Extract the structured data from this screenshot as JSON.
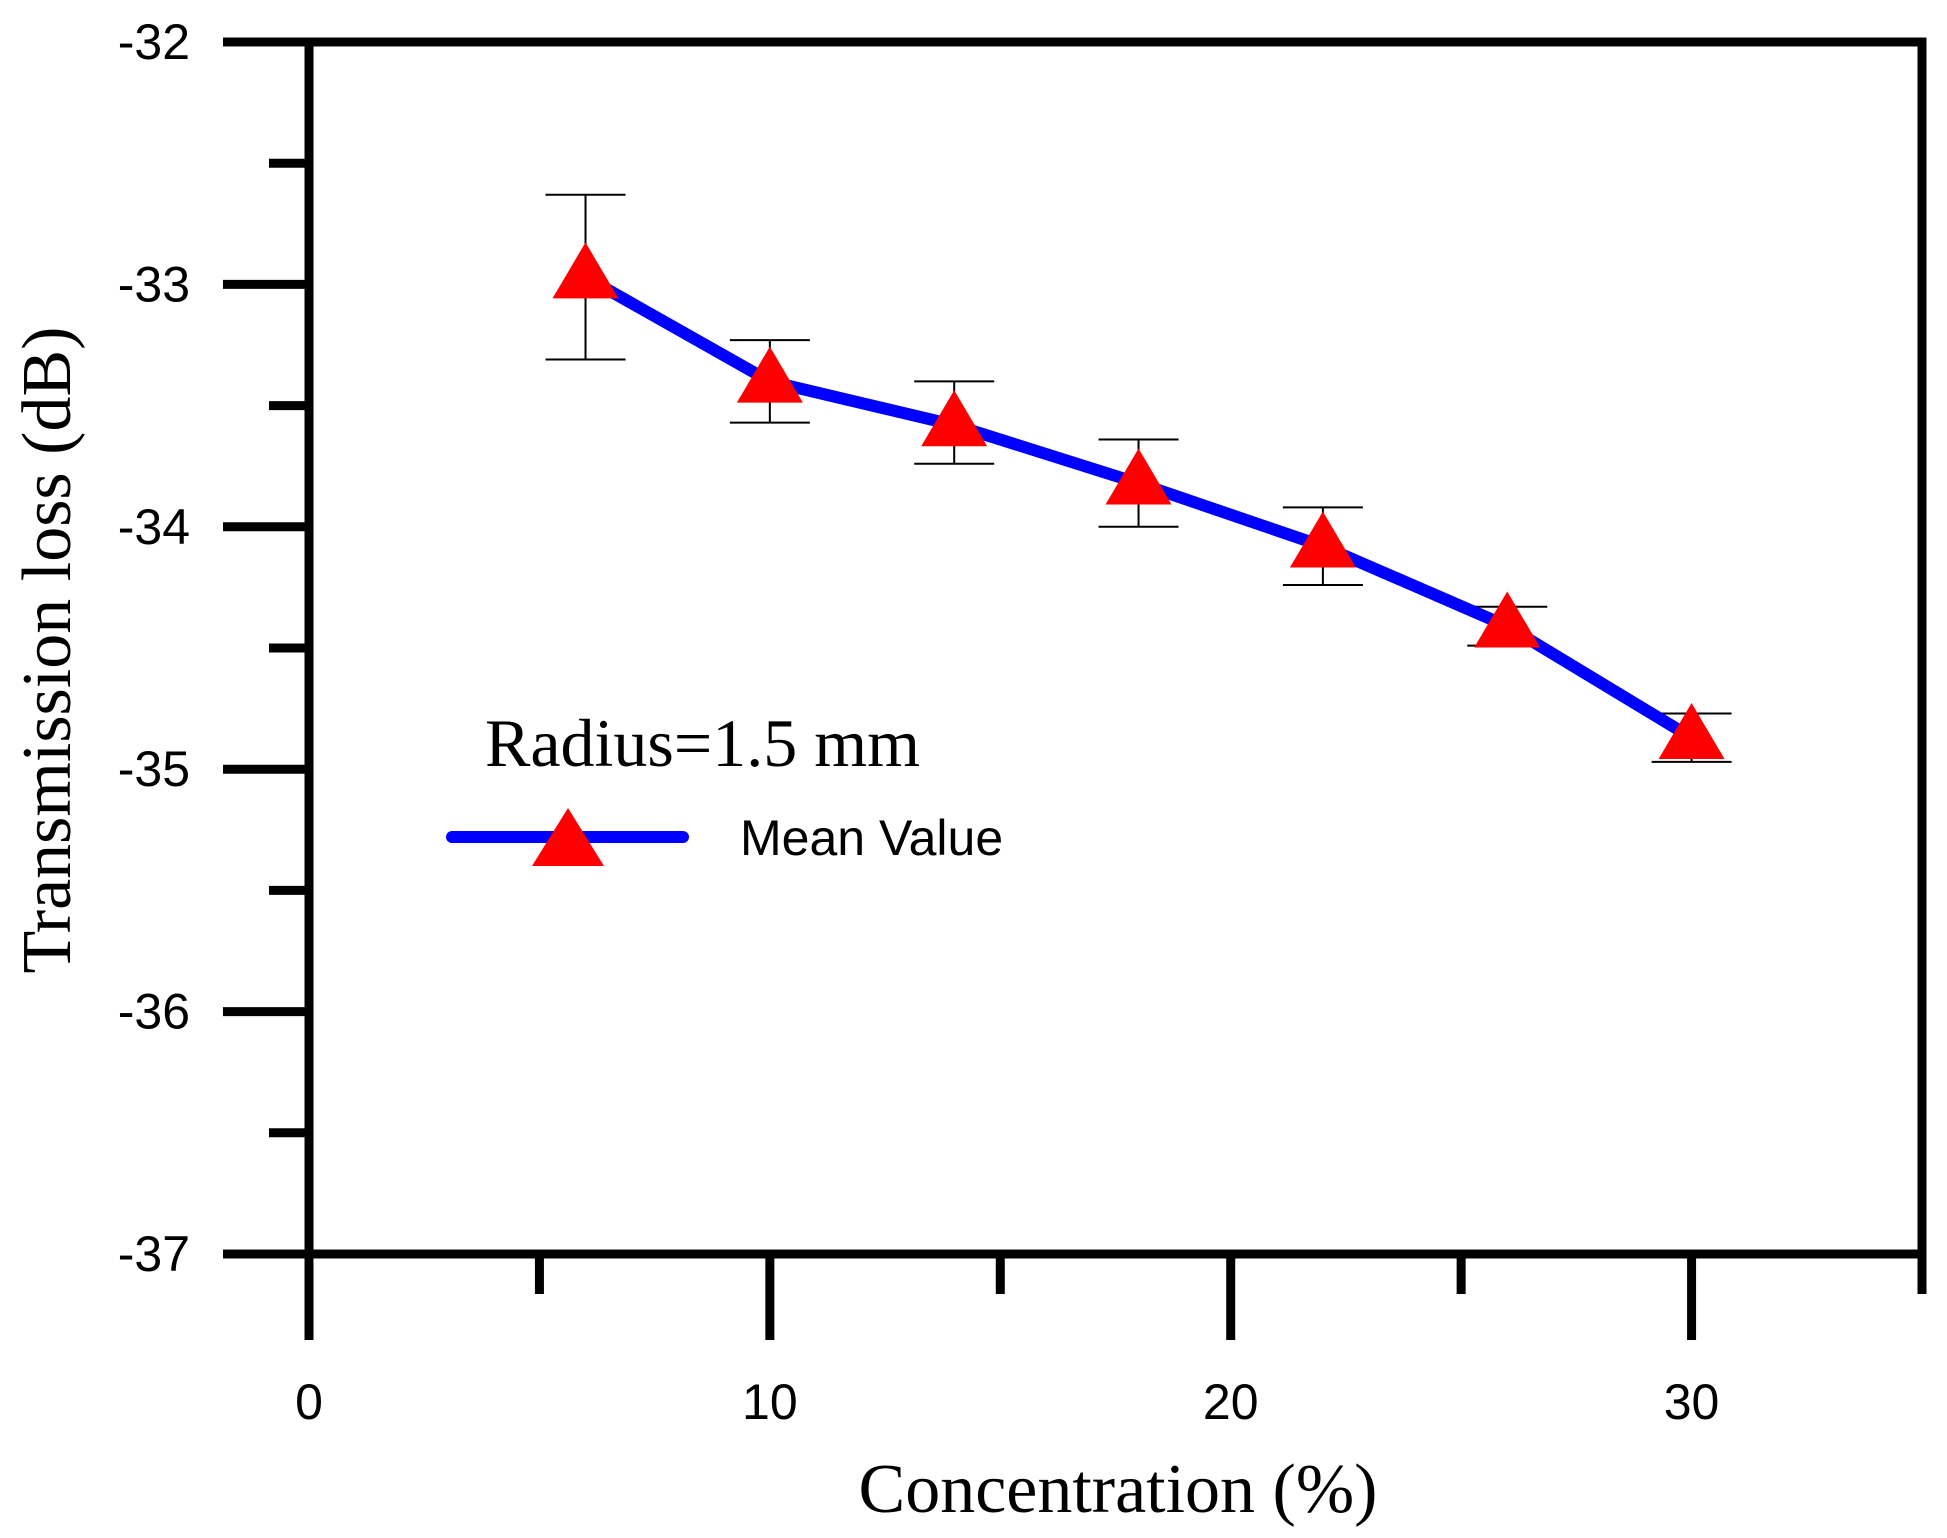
{
  "chart_data": {
    "type": "line",
    "title": "",
    "xlabel": "Concentration (%)",
    "ylabel": "Transmission loss (dB)",
    "xlim": [
      0,
      35
    ],
    "ylim": [
      -37,
      -32
    ],
    "x_ticks": [
      0,
      10,
      20,
      30
    ],
    "x_minor_ticks": [
      5,
      15,
      25,
      35
    ],
    "x_tick_labels": [
      "0",
      "10",
      "20",
      "30"
    ],
    "y_ticks": [
      -32,
      -33,
      -34,
      -35,
      -36,
      -37
    ],
    "y_minor_ticks": [
      -32.5,
      -33.5,
      -34.5,
      -35.5,
      -36.5
    ],
    "y_tick_labels": [
      "-32",
      "-33",
      "-34",
      "-35",
      "-36",
      "-37"
    ],
    "grid": false,
    "legend_title": "Radius=1.5 mm",
    "legend_position": "center-left",
    "series": [
      {
        "name": "Mean Value",
        "color": "#0000ff",
        "marker": "triangle",
        "marker_color": "#ff0000",
        "x": [
          6,
          10,
          14,
          18,
          22,
          26,
          30
        ],
        "values": [
          -32.97,
          -33.4,
          -33.58,
          -33.82,
          -34.08,
          -34.41,
          -34.87
        ],
        "error_low": [
          0.34,
          0.17,
          0.16,
          0.18,
          0.16,
          0.08,
          0.1
        ],
        "error_high": [
          0.34,
          0.17,
          0.18,
          0.18,
          0.16,
          0.08,
          0.1
        ]
      }
    ]
  }
}
